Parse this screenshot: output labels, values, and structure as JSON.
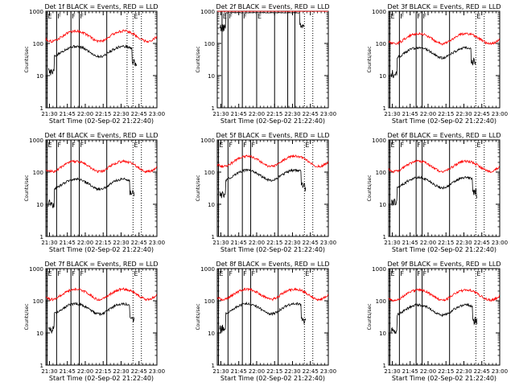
{
  "figure": {
    "colors": {
      "events": "#000000",
      "lld": "#ff0000",
      "axes": "#000000",
      "background": "#ffffff"
    }
  },
  "chart_data": [
    {
      "type": "line",
      "title": "Det 1f BLACK = Events, RED = LLD",
      "xlabel": "Start Time (02-Sep-02 21:22:40)",
      "ylabel": "Counts/sec",
      "xticks": [
        "21:30",
        "21:45",
        "22:00",
        "22:15",
        "22:30",
        "22:45",
        "23:00"
      ],
      "yticks": [
        "1",
        "10",
        "100",
        "1000"
      ],
      "yscale": "log",
      "ylim": [
        1,
        1000
      ],
      "xlim_minutes_from_2130": [
        -3,
        90
      ],
      "solid_lines": [
        -2,
        6,
        18,
        25,
        48
      ],
      "dotted_lines": [
        70,
        65,
        77
      ],
      "flags": [
        "E",
        "F",
        "F",
        "F",
        "E"
      ],
      "series": [
        {
          "name": "Events",
          "color": "#000000",
          "profile": "wave",
          "level": 60,
          "start": -1,
          "end": 73
        },
        {
          "name": "LLD",
          "color": "#ff0000",
          "profile": "wave",
          "level": 180,
          "start": -3,
          "end": 90
        }
      ]
    },
    {
      "type": "line",
      "title": "Det 2f BLACK = Events, RED = LLD",
      "xlabel": "Start Time (02-Sep-02 21:22:40)",
      "ylabel": "Counts/sec",
      "xticks": [
        "21:30",
        "21:45",
        "22:00",
        "22:15",
        "22:30",
        "22:45",
        "23:00"
      ],
      "yticks": [
        "1",
        "10",
        "100",
        "1000"
      ],
      "yscale": "log",
      "ylim": [
        1,
        1000
      ],
      "xlim_minutes_from_2130": [
        -3,
        90
      ],
      "solid_lines": [
        1,
        6,
        18,
        30,
        45,
        56,
        62
      ],
      "dotted_lines": [
        70,
        77
      ],
      "flags": [
        "E",
        "F",
        "F",
        "E"
      ],
      "series": [
        {
          "name": "Events",
          "color": "#000000",
          "profile": "flat",
          "level": 900,
          "start": -1,
          "end": 70
        },
        {
          "name": "LLD",
          "color": "#ff0000",
          "profile": "flat",
          "level": 1000,
          "start": -3,
          "end": 90
        }
      ]
    },
    {
      "type": "line",
      "title": "Det 3f BLACK = Events, RED = LLD",
      "xlabel": "Start Time (02-Sep-02 21:22:40)",
      "ylabel": "Counts/sec",
      "xticks": [
        "21:30",
        "21:45",
        "22:00",
        "22:15",
        "22:30",
        "22:45",
        "23:00"
      ],
      "yticks": [
        "1",
        "10",
        "100",
        "1000"
      ],
      "yscale": "log",
      "ylim": [
        1,
        1000
      ],
      "xlim_minutes_from_2130": [
        -3,
        90
      ],
      "solid_lines": [
        -2,
        6,
        20,
        25,
        48
      ],
      "dotted_lines": [
        70,
        77
      ],
      "flags": [
        "E",
        "F",
        "F",
        "F",
        "E"
      ],
      "series": [
        {
          "name": "Events",
          "color": "#000000",
          "profile": "wave",
          "level": 55,
          "start": -1,
          "end": 70
        },
        {
          "name": "LLD",
          "color": "#ff0000",
          "profile": "wave",
          "level": 150,
          "start": -3,
          "end": 90
        }
      ]
    },
    {
      "type": "line",
      "title": "Det 4f BLACK = Events, RED = LLD",
      "xlabel": "Start Time (02-Sep-02 21:22:40)",
      "ylabel": "Counts/sec",
      "xticks": [
        "21:30",
        "21:45",
        "22:00",
        "22:15",
        "22:30",
        "22:45",
        "23:00"
      ],
      "yticks": [
        "1",
        "10",
        "100",
        "1000"
      ],
      "yscale": "log",
      "ylim": [
        1,
        1000
      ],
      "xlim_minutes_from_2130": [
        -3,
        90
      ],
      "solid_lines": [
        -2,
        6,
        18,
        25,
        48
      ],
      "dotted_lines": [
        70,
        77
      ],
      "flags": [
        "E",
        "F",
        "F",
        "F",
        "E"
      ],
      "series": [
        {
          "name": "Events",
          "color": "#000000",
          "profile": "wave",
          "level": 45,
          "start": -1,
          "end": 71
        },
        {
          "name": "LLD",
          "color": "#ff0000",
          "profile": "wave",
          "level": 160,
          "start": -3,
          "end": 90
        }
      ]
    },
    {
      "type": "line",
      "title": "Det 5f BLACK = Events, RED = LLD",
      "xlabel": "Start Time (02-Sep-02 21:22:40)",
      "ylabel": "Counts/sec",
      "xticks": [
        "21:30",
        "21:45",
        "22:00",
        "22:15",
        "22:30",
        "22:45",
        "23:00"
      ],
      "yticks": [
        "1",
        "10",
        "100",
        "1000"
      ],
      "yscale": "log",
      "ylim": [
        1,
        1000
      ],
      "xlim_minutes_from_2130": [
        -3,
        90
      ],
      "solid_lines": [
        -2,
        6,
        18,
        25,
        48
      ],
      "dotted_lines": [
        70,
        77
      ],
      "flags": [
        "E",
        "F",
        "F",
        "F",
        "E"
      ],
      "series": [
        {
          "name": "Events",
          "color": "#000000",
          "profile": "wave",
          "level": 85,
          "start": -1,
          "end": 71
        },
        {
          "name": "LLD",
          "color": "#ff0000",
          "profile": "wave",
          "level": 230,
          "start": -3,
          "end": 90
        }
      ]
    },
    {
      "type": "line",
      "title": "Det 6f BLACK = Events, RED = LLD",
      "xlabel": "Start Time (02-Sep-02 21:22:40)",
      "ylabel": "Counts/sec",
      "xticks": [
        "21:30",
        "21:45",
        "22:00",
        "22:15",
        "22:30",
        "22:45",
        "23:00"
      ],
      "yticks": [
        "1",
        "10",
        "100",
        "1000"
      ],
      "yscale": "log",
      "ylim": [
        1,
        1000
      ],
      "xlim_minutes_from_2130": [
        -3,
        90
      ],
      "solid_lines": [
        -2,
        6,
        20,
        25,
        48
      ],
      "dotted_lines": [
        70,
        77
      ],
      "flags": [
        "E",
        "F",
        "F",
        "F",
        "E"
      ],
      "series": [
        {
          "name": "Events",
          "color": "#000000",
          "profile": "wave",
          "level": 50,
          "start": -1,
          "end": 71
        },
        {
          "name": "LLD",
          "color": "#ff0000",
          "profile": "wave",
          "level": 160,
          "start": -3,
          "end": 90
        }
      ]
    },
    {
      "type": "line",
      "title": "Det 7f BLACK = Events, RED = LLD",
      "xlabel": "Start Time (02-Sep-02 21:22:40)",
      "ylabel": "Counts/sec",
      "xticks": [
        "21:30",
        "21:45",
        "22:00",
        "22:15",
        "22:30",
        "22:45",
        "23:00"
      ],
      "yticks": [
        "1",
        "10",
        "100",
        "1000"
      ],
      "yscale": "log",
      "ylim": [
        1,
        1000
      ],
      "xlim_minutes_from_2130": [
        -3,
        90
      ],
      "solid_lines": [
        -2,
        6,
        18,
        25,
        48
      ],
      "dotted_lines": [
        70,
        77
      ],
      "flags": [
        "E",
        "F",
        "F",
        "F",
        "E"
      ],
      "series": [
        {
          "name": "Events",
          "color": "#000000",
          "profile": "wave",
          "level": 60,
          "start": -1,
          "end": 71
        },
        {
          "name": "LLD",
          "color": "#ff0000",
          "profile": "wave",
          "level": 170,
          "start": -3,
          "end": 90
        }
      ]
    },
    {
      "type": "line",
      "title": "Det 8f BLACK = Events, RED = LLD",
      "xlabel": "Start Time (02-Sep-02 21:22:40)",
      "ylabel": "Counts/sec",
      "xticks": [
        "21:30",
        "21:45",
        "22:00",
        "22:15",
        "22:30",
        "22:45",
        "23:00"
      ],
      "yticks": [
        "1",
        "10",
        "100",
        "1000"
      ],
      "yscale": "log",
      "ylim": [
        1,
        1000
      ],
      "xlim_minutes_from_2130": [
        -3,
        90
      ],
      "solid_lines": [
        -2,
        6,
        18,
        25,
        48
      ],
      "dotted_lines": [
        70,
        77
      ],
      "flags": [
        "E",
        "F",
        "F",
        "F",
        "E"
      ],
      "series": [
        {
          "name": "Events",
          "color": "#000000",
          "profile": "wave",
          "level": 60,
          "start": -1,
          "end": 71
        },
        {
          "name": "LLD",
          "color": "#ff0000",
          "profile": "wave",
          "level": 170,
          "start": -3,
          "end": 90
        }
      ]
    },
    {
      "type": "line",
      "title": "Det 9f BLACK = Events, RED = LLD",
      "xlabel": "Start Time (02-Sep-02 21:22:40)",
      "ylabel": "Counts/sec",
      "xticks": [
        "21:30",
        "21:45",
        "22:00",
        "22:15",
        "22:30",
        "22:45",
        "23:00"
      ],
      "yticks": [
        "1",
        "10",
        "100",
        "1000"
      ],
      "yscale": "log",
      "ylim": [
        1,
        1000
      ],
      "xlim_minutes_from_2130": [
        -3,
        90
      ],
      "solid_lines": [
        -2,
        6,
        20,
        25,
        48
      ],
      "dotted_lines": [
        70,
        77
      ],
      "flags": [
        "E",
        "F",
        "F",
        "F",
        "E"
      ],
      "series": [
        {
          "name": "Events",
          "color": "#000000",
          "profile": "wave",
          "level": 55,
          "start": -1,
          "end": 71
        },
        {
          "name": "LLD",
          "color": "#ff0000",
          "profile": "wave",
          "level": 160,
          "start": -3,
          "end": 90
        }
      ]
    }
  ]
}
